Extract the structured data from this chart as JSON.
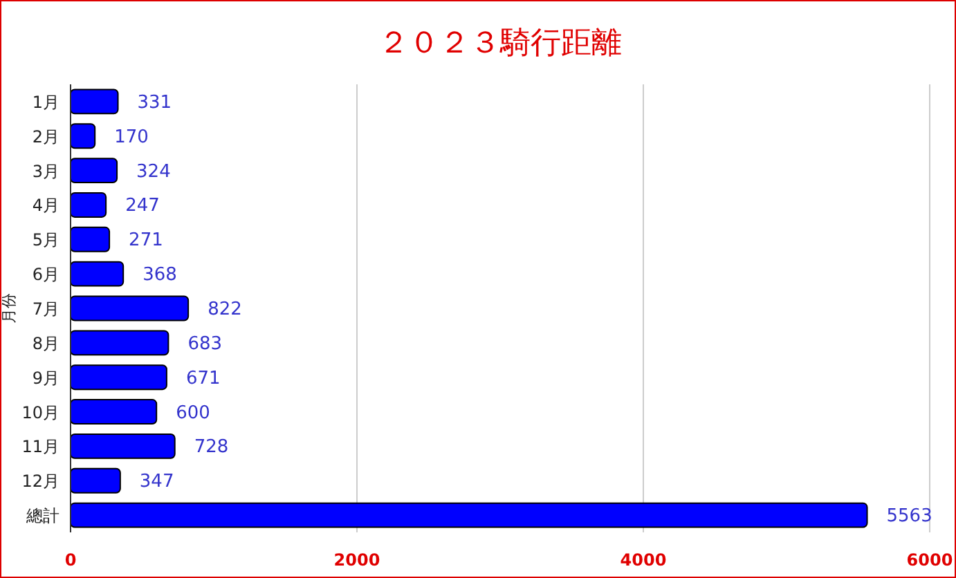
{
  "chart_data": {
    "type": "bar",
    "orientation": "horizontal",
    "title": "２０２３騎行距離",
    "ylabel": "月份",
    "categories": [
      "1月",
      "2月",
      "3月",
      "4月",
      "5月",
      "6月",
      "7月",
      "8月",
      "9月",
      "10月",
      "11月",
      "12月",
      "總計"
    ],
    "values": [
      331,
      170,
      324,
      247,
      271,
      368,
      822,
      683,
      671,
      600,
      728,
      347,
      5563
    ],
    "color": "#0000ff",
    "xlim": [
      0,
      6000
    ],
    "xticks": [
      0,
      2000,
      4000,
      6000
    ],
    "grid": "x",
    "data_labels": true
  }
}
